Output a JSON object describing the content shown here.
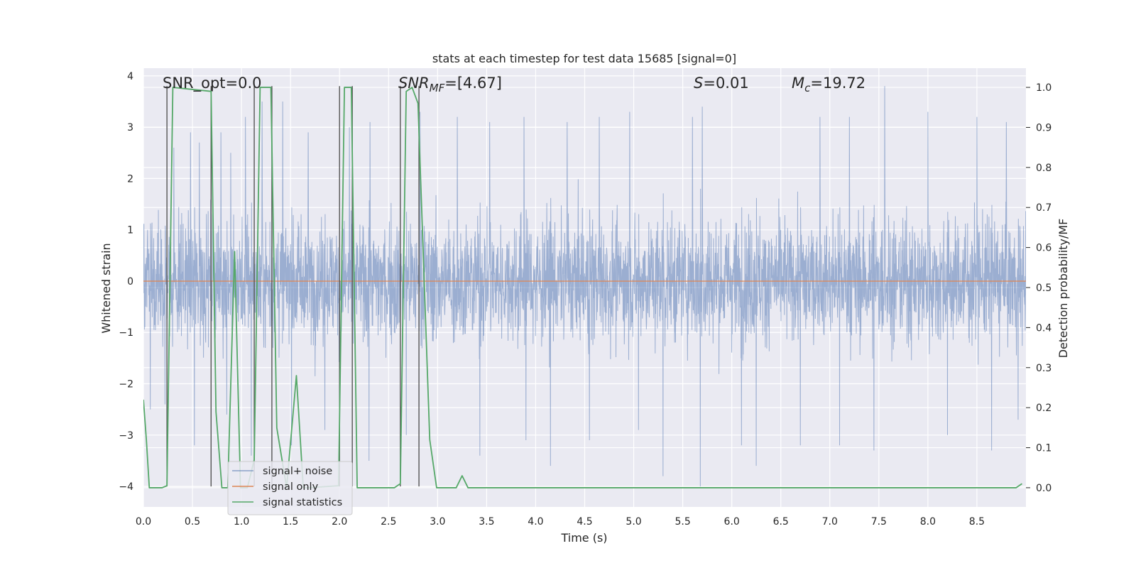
{
  "chart_data": {
    "type": "line",
    "title": "stats at each timestep for test data 15685 [signal=0]",
    "xlabel": "Time (s)",
    "ylabel": "Whitened strain",
    "ylabel_right": "Detection probability/MF",
    "xlim": [
      0.0,
      9.0
    ],
    "ylim": [
      -4.4,
      4.15
    ],
    "ylim_right": [
      -0.048,
      1.048
    ],
    "x_ticks": [
      "0.0",
      "0.5",
      "1.0",
      "1.5",
      "2.0",
      "2.5",
      "3.0",
      "3.5",
      "4.0",
      "4.5",
      "5.0",
      "5.5",
      "6.0",
      "6.5",
      "7.0",
      "7.5",
      "8.0",
      "8.5"
    ],
    "y_ticks": [
      "4",
      "3",
      "2",
      "1",
      "0",
      "−1",
      "−2",
      "−3",
      "−4"
    ],
    "y_ticks_right": [
      "1.0",
      "0.9",
      "0.8",
      "0.7",
      "0.6",
      "0.5",
      "0.4",
      "0.3",
      "0.2",
      "0.1",
      "0.0"
    ],
    "grid": true,
    "legend_placement": "lower-left",
    "colors": {
      "background": "#eaeaf2",
      "grid": "#ffffff",
      "signal_noise": "#4c72b0",
      "signal_only": "#dd8452",
      "statistics": "#55a868",
      "markers": "#555555"
    },
    "annotations": {
      "snr_opt": "SNR_opt=0.0",
      "snr_mf_main": "SNR",
      "snr_mf_sub": "MF",
      "snr_mf_val": "=[4.67]",
      "s_sym": "S",
      "s_val": "=0.01",
      "mc_sym": "M",
      "mc_sub": "c",
      "mc_val": "=19.72"
    },
    "series": [
      {
        "name": "signal+ noise",
        "axis": "left",
        "style": "whitened noise trace, sampled 0.0–9.0 s, amplitude roughly ±2 with excursions to +3.8 and −4.0",
        "envelope_peaks": [
          [
            0.07,
            3.1
          ],
          [
            0.22,
            3.2
          ],
          [
            0.31,
            2.6
          ],
          [
            0.48,
            2.9
          ],
          [
            0.57,
            2.7
          ],
          [
            0.79,
            2.9
          ],
          [
            0.89,
            2.5
          ],
          [
            1.04,
            3.2
          ],
          [
            1.21,
            3.5
          ],
          [
            1.42,
            3.5
          ],
          [
            1.68,
            2.9
          ],
          [
            2.1,
            3.0
          ],
          [
            2.31,
            3.1
          ],
          [
            2.82,
            3.3
          ],
          [
            3.2,
            3.2
          ],
          [
            3.53,
            3.1
          ],
          [
            3.88,
            3.2
          ],
          [
            4.32,
            3.1
          ],
          [
            4.65,
            3.2
          ],
          [
            4.96,
            3.3
          ],
          [
            5.6,
            3.2
          ],
          [
            5.7,
            3.4
          ],
          [
            6.1,
            3.3
          ],
          [
            6.25,
            3.1
          ],
          [
            6.9,
            3.2
          ],
          [
            7.2,
            3.2
          ],
          [
            7.56,
            3.8
          ],
          [
            8.0,
            3.3
          ],
          [
            8.5,
            3.2
          ],
          [
            8.8,
            3.1
          ]
        ],
        "envelope_troughs": [
          [
            0.07,
            -2.5
          ],
          [
            0.22,
            -2.4
          ],
          [
            0.52,
            -3.2
          ],
          [
            0.85,
            -2.6
          ],
          [
            1.1,
            -3.4
          ],
          [
            1.51,
            -3.2
          ],
          [
            1.85,
            -2.9
          ],
          [
            2.3,
            -3.5
          ],
          [
            2.68,
            -3.0
          ],
          [
            3.43,
            -3.4
          ],
          [
            3.9,
            -3.1
          ],
          [
            4.15,
            -3.6
          ],
          [
            4.55,
            -3.1
          ],
          [
            5.05,
            -2.9
          ],
          [
            5.3,
            -3.8
          ],
          [
            5.68,
            -4.0
          ],
          [
            6.1,
            -3.2
          ],
          [
            6.25,
            -3.6
          ],
          [
            6.7,
            -3.2
          ],
          [
            7.1,
            -3.2
          ],
          [
            7.45,
            -3.3
          ],
          [
            8.2,
            -3.0
          ],
          [
            8.65,
            -3.3
          ],
          [
            8.92,
            -2.7
          ]
        ]
      },
      {
        "name": "signal only",
        "axis": "left",
        "x": [
          0.0,
          9.0
        ],
        "y": [
          0.0,
          0.0
        ]
      },
      {
        "name": "signal statistics",
        "axis": "right",
        "x": [
          0.0,
          0.03,
          0.06,
          0.19,
          0.24,
          0.3,
          0.69,
          0.74,
          0.8,
          0.86,
          0.93,
          0.99,
          1.06,
          1.13,
          1.19,
          1.3,
          1.36,
          1.46,
          1.56,
          1.63,
          1.69,
          1.99,
          2.05,
          2.12,
          2.18,
          2.24,
          2.56,
          2.62,
          2.68,
          2.74,
          2.8,
          2.92,
          2.99,
          3.05,
          3.19,
          3.25,
          3.31,
          8.9,
          8.96
        ],
        "y": [
          0.22,
          0.12,
          0.0,
          0.0,
          0.005,
          1.0,
          0.99,
          0.19,
          0.0,
          0.0,
          0.59,
          0.0,
          0.0,
          0.07,
          1.0,
          1.0,
          0.15,
          0.0,
          0.28,
          0.0,
          0.0,
          0.005,
          1.0,
          1.0,
          0.0,
          0.0,
          0.0,
          0.01,
          0.99,
          1.0,
          0.96,
          0.12,
          0.0,
          0.0,
          0.0,
          0.03,
          0.0,
          0.0,
          0.01
        ]
      }
    ],
    "vertical_markers": [
      {
        "x": 0.24,
        "ymin": -4.0,
        "ymax": 3.8
      },
      {
        "x": 0.69,
        "ymin": -4.0,
        "ymax": 3.8
      },
      {
        "x": 1.13,
        "ymin": -4.0,
        "ymax": 3.8
      },
      {
        "x": 1.31,
        "ymin": -4.0,
        "ymax": 3.8
      },
      {
        "x": 2.0,
        "ymin": -4.0,
        "ymax": 3.8
      },
      {
        "x": 2.13,
        "ymin": -4.0,
        "ymax": 3.8
      },
      {
        "x": 2.62,
        "ymin": -4.0,
        "ymax": 3.8
      },
      {
        "x": 2.81,
        "ymin": -4.0,
        "ymax": 3.8
      }
    ],
    "legend": [
      {
        "label": "signal+ noise",
        "color_key": "signal_noise"
      },
      {
        "label": "signal only",
        "color_key": "signal_only"
      },
      {
        "label": "signal statistics",
        "color_key": "statistics"
      }
    ]
  }
}
